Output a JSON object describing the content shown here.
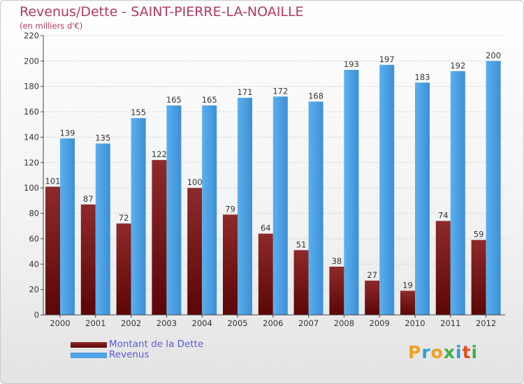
{
  "header": {
    "title": "Revenus/Dette - SAINT-PIERRE-LA-NOAILLE",
    "subtitle": "(en milliers d'€)"
  },
  "chart_data": {
    "type": "bar",
    "categories": [
      "2000",
      "2001",
      "2002",
      "2003",
      "2004",
      "2005",
      "2006",
      "2007",
      "2008",
      "2009",
      "2010",
      "2011",
      "2012"
    ],
    "series": [
      {
        "name": "Montant de la Dette",
        "values": [
          101,
          87,
          72,
          122,
          100,
          79,
          64,
          51,
          38,
          27,
          19,
          74,
          59
        ],
        "color": "#7a1a1a"
      },
      {
        "name": "Revenus",
        "values": [
          139,
          135,
          155,
          165,
          165,
          171,
          172,
          168,
          193,
          197,
          183,
          192,
          200
        ],
        "color": "#4fa3e6"
      }
    ],
    "ylim": [
      0,
      220
    ],
    "yticks": [
      0,
      20,
      40,
      60,
      80,
      100,
      120,
      140,
      160,
      180,
      200,
      220
    ],
    "grid": true,
    "legend_position": "bottom-left"
  },
  "legend": {
    "items": [
      {
        "label": "Montant de la Dette",
        "color": "#6b0f0f"
      },
      {
        "label": "Revenus",
        "color": "#4fa3e6"
      }
    ]
  },
  "brand": {
    "letters": [
      "P",
      "r",
      "o",
      "x",
      "i",
      "t",
      "i"
    ],
    "colors": [
      "#f0a020",
      "#2a9fd6",
      "#f0a020",
      "#3fae49",
      "#2a9fd6",
      "#e94e1b",
      "#3fae49"
    ]
  }
}
